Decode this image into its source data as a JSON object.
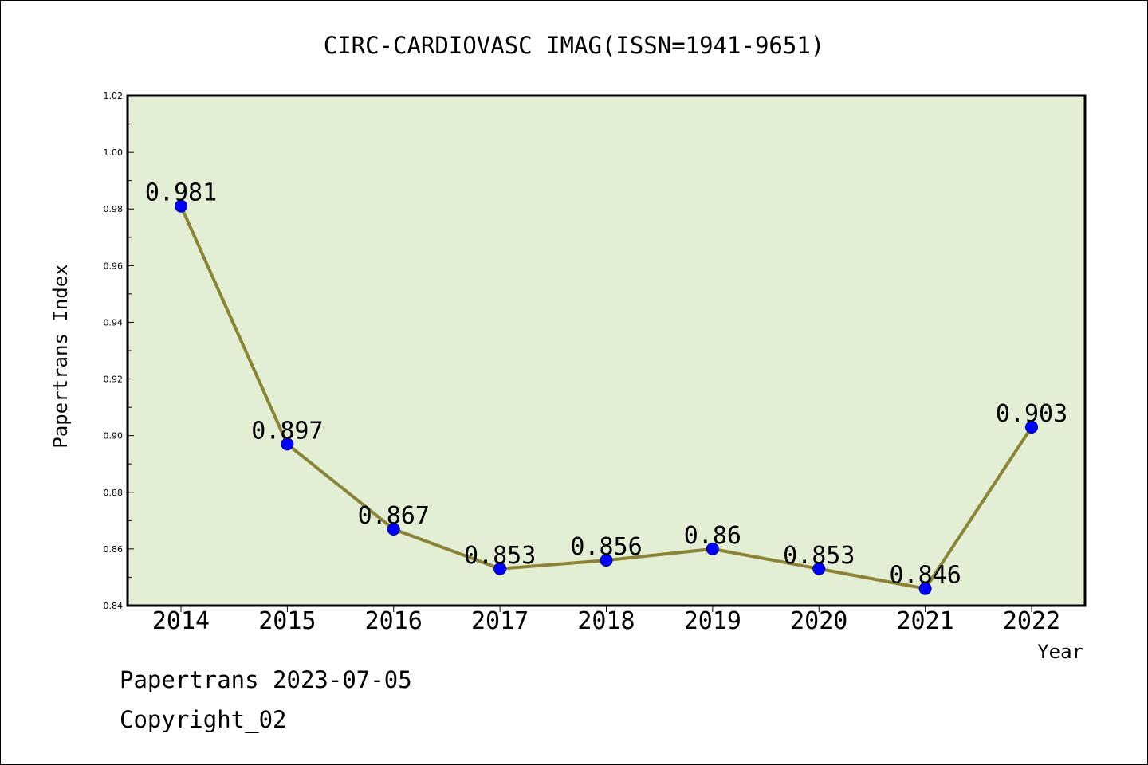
{
  "chart_data": {
    "type": "line",
    "title": "CIRC-CARDIOVASC IMAG(ISSN=1941-9651)",
    "xlabel": "Year",
    "ylabel": "Papertrans Index",
    "categories": [
      "2014",
      "2015",
      "2016",
      "2017",
      "2018",
      "2019",
      "2020",
      "2021",
      "2022"
    ],
    "values": [
      0.981,
      0.897,
      0.867,
      0.853,
      0.856,
      0.86,
      0.853,
      0.846,
      0.903
    ],
    "data_labels": [
      "0.981",
      "0.897",
      "0.867",
      "0.853",
      "0.856",
      "0.86",
      "0.853",
      "0.846",
      "0.903"
    ],
    "ylim": [
      0.84,
      1.02
    ],
    "yticks": [
      "0.84",
      "0.86",
      "0.88",
      "0.90",
      "0.92",
      "0.94",
      "0.96",
      "0.98",
      "1.00",
      "1.02"
    ],
    "grid": false,
    "legend": "none",
    "colors": {
      "plot_background": "#e2efd5",
      "line": "#8b8335",
      "marker": "#0000ff",
      "axis": "#000000"
    }
  },
  "footer": {
    "line1": "Papertrans 2023-07-05",
    "line2": "Copyright_02"
  }
}
